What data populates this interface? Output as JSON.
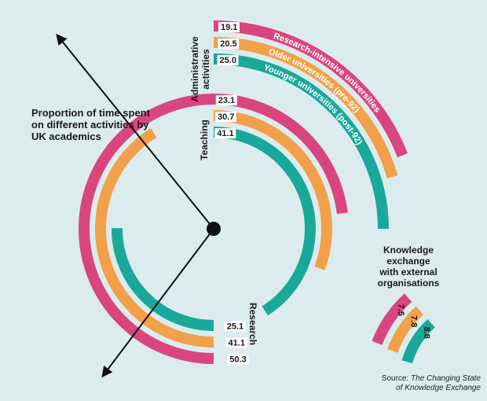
{
  "title": "Proportion of time spent on different activities by UK academics",
  "source": {
    "prefix": "Source: ",
    "italic_line1": "The Changing State",
    "italic_line2": "of Knowledge Exchange"
  },
  "chart_data": {
    "type": "radial_bar",
    "unit": "percent",
    "series": [
      {
        "name": "Research-intensive universities",
        "color": "#d9467f"
      },
      {
        "name": "Older universities (pre-92)",
        "color": "#f2a04a"
      },
      {
        "name": "Younger universities (post-92)",
        "color": "#1aa89a"
      }
    ],
    "activities": [
      {
        "label": "Administrative activities",
        "label_lines": [
          "Administrative",
          "activities"
        ],
        "values": [
          19.1,
          20.5,
          25.0
        ]
      },
      {
        "label": "Teaching",
        "label_lines": [
          "Teaching"
        ],
        "values": [
          23.1,
          30.7,
          41.1
        ]
      },
      {
        "label": "Research",
        "label_lines": [
          "Research"
        ],
        "values": [
          50.3,
          41.1,
          25.1
        ]
      },
      {
        "label": "Knowledge exchange with external organisations",
        "label_lines": [
          "Knowledge",
          "exchange",
          "with external",
          "organisations"
        ],
        "values": [
          7.5,
          7.8,
          8.8
        ]
      }
    ]
  }
}
